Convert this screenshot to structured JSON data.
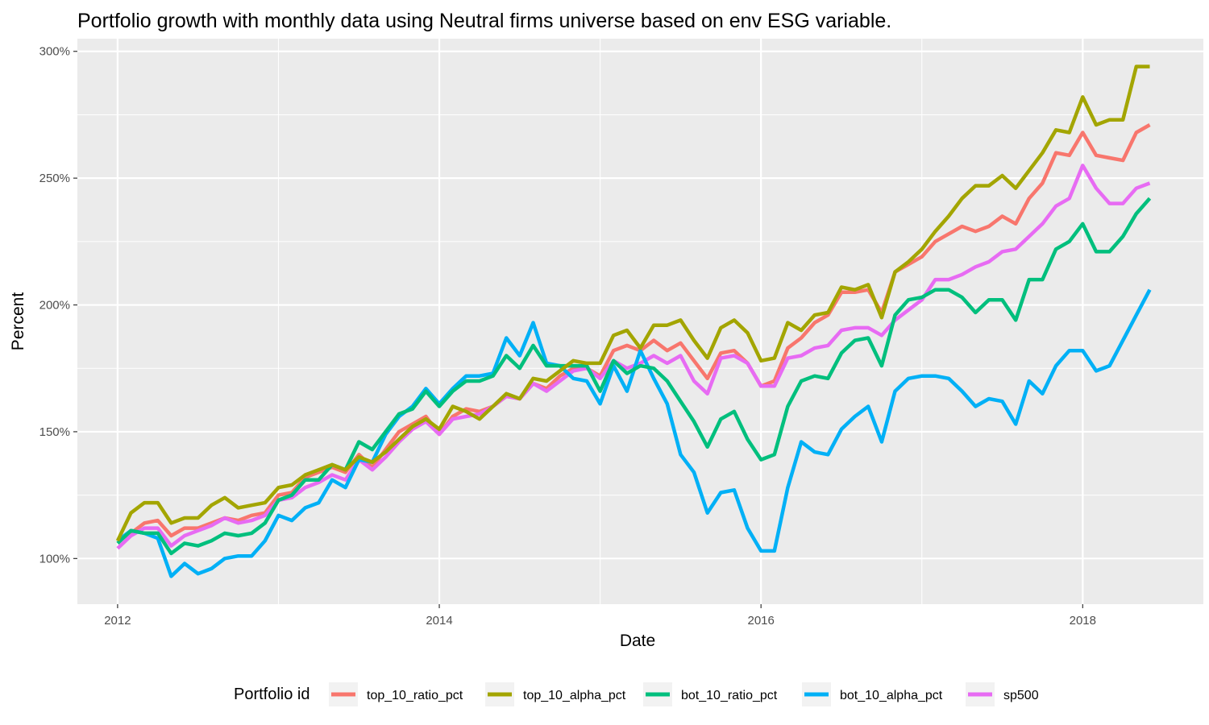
{
  "chart_data": {
    "type": "line",
    "title": "Portfolio growth with monthly data using Neutral firms universe based on env ESG variable.",
    "xlabel": "Date",
    "ylabel": "Percent",
    "x_ticks": [
      "2012",
      "2014",
      "2016",
      "2018"
    ],
    "y_ticks": [
      "100%",
      "150%",
      "200%",
      "250%",
      "300%"
    ],
    "xlim": [
      "2011-10",
      "2018-10"
    ],
    "ylim": [
      82,
      305
    ],
    "grid": true,
    "legend_title": "Portfolio id",
    "legend_position": "bottom",
    "x": [
      "2012-01",
      "2012-02",
      "2012-03",
      "2012-04",
      "2012-05",
      "2012-06",
      "2012-07",
      "2012-08",
      "2012-09",
      "2012-10",
      "2012-11",
      "2012-12",
      "2013-01",
      "2013-02",
      "2013-03",
      "2013-04",
      "2013-05",
      "2013-06",
      "2013-07",
      "2013-08",
      "2013-09",
      "2013-10",
      "2013-11",
      "2013-12",
      "2014-01",
      "2014-02",
      "2014-03",
      "2014-04",
      "2014-05",
      "2014-06",
      "2014-07",
      "2014-08",
      "2014-09",
      "2014-10",
      "2014-11",
      "2014-12",
      "2015-01",
      "2015-02",
      "2015-03",
      "2015-04",
      "2015-05",
      "2015-06",
      "2015-07",
      "2015-08",
      "2015-09",
      "2015-10",
      "2015-11",
      "2015-12",
      "2016-01",
      "2016-02",
      "2016-03",
      "2016-04",
      "2016-05",
      "2016-06",
      "2016-07",
      "2016-08",
      "2016-09",
      "2016-10",
      "2016-11",
      "2016-12",
      "2017-01",
      "2017-02",
      "2017-03",
      "2017-04",
      "2017-05",
      "2017-06",
      "2017-07",
      "2017-08",
      "2017-09",
      "2017-10",
      "2017-11",
      "2017-12",
      "2018-01",
      "2018-02",
      "2018-03",
      "2018-04",
      "2018-05",
      "2018-06"
    ],
    "series": [
      {
        "name": "top_10_ratio_pct",
        "color": "#F8766D",
        "values": [
          107,
          110,
          114,
          115,
          109,
          112,
          112,
          114,
          116,
          115,
          117,
          118,
          125,
          126,
          132,
          134,
          136,
          134,
          141,
          136,
          143,
          150,
          153,
          156,
          149,
          156,
          159,
          158,
          160,
          164,
          163,
          169,
          167,
          172,
          175,
          175,
          172,
          182,
          184,
          182,
          186,
          182,
          185,
          178,
          171,
          181,
          182,
          177,
          168,
          170,
          183,
          187,
          193,
          196,
          205,
          205,
          206,
          197,
          213,
          216,
          219,
          225,
          228,
          231,
          229,
          231,
          235,
          232,
          242,
          248,
          260,
          259,
          268,
          259,
          258,
          257,
          268,
          271
        ]
      },
      {
        "name": "top_10_alpha_pct",
        "color": "#A3A500",
        "values": [
          107,
          118,
          122,
          122,
          114,
          116,
          116,
          121,
          124,
          120,
          121,
          122,
          128,
          129,
          133,
          135,
          137,
          135,
          140,
          138,
          142,
          147,
          152,
          155,
          151,
          160,
          158,
          155,
          160,
          165,
          163,
          171,
          170,
          174,
          178,
          177,
          177,
          188,
          190,
          183,
          192,
          192,
          194,
          186,
          179,
          191,
          194,
          189,
          178,
          179,
          193,
          190,
          196,
          197,
          207,
          206,
          208,
          195,
          213,
          217,
          222,
          229,
          235,
          242,
          247,
          247,
          251,
          246,
          253,
          260,
          269,
          268,
          282,
          271,
          273,
          273,
          294,
          294
        ]
      },
      {
        "name": "bot_10_ratio_pct",
        "color": "#00BF7D",
        "values": [
          106,
          111,
          110,
          110,
          102,
          106,
          105,
          107,
          110,
          109,
          110,
          114,
          123,
          125,
          131,
          131,
          137,
          135,
          146,
          143,
          150,
          157,
          159,
          166,
          160,
          166,
          170,
          170,
          172,
          180,
          175,
          184,
          176,
          176,
          176,
          176,
          166,
          178,
          173,
          176,
          175,
          170,
          162,
          154,
          144,
          155,
          158,
          147,
          139,
          141,
          160,
          170,
          172,
          171,
          181,
          186,
          187,
          176,
          196,
          202,
          203,
          206,
          206,
          203,
          197,
          202,
          202,
          194,
          210,
          210,
          222,
          225,
          232,
          221,
          221,
          227,
          236,
          242
        ]
      },
      {
        "name": "bot_10_alpha_pct",
        "color": "#00B0F6",
        "values": [
          107,
          111,
          110,
          108,
          93,
          98,
          94,
          96,
          100,
          101,
          101,
          107,
          117,
          115,
          120,
          122,
          131,
          128,
          139,
          138,
          149,
          156,
          160,
          167,
          161,
          167,
          172,
          172,
          173,
          187,
          180,
          193,
          177,
          176,
          171,
          170,
          161,
          176,
          166,
          182,
          171,
          161,
          141,
          134,
          118,
          126,
          127,
          112,
          103,
          103,
          128,
          146,
          142,
          141,
          151,
          156,
          160,
          146,
          166,
          171,
          172,
          172,
          171,
          166,
          160,
          163,
          162,
          153,
          170,
          165,
          176,
          182,
          182,
          174,
          176,
          186,
          196,
          206
        ]
      },
      {
        "name": "sp500",
        "color": "#E76BF3",
        "values": [
          104,
          109,
          112,
          112,
          105,
          109,
          111,
          113,
          116,
          114,
          115,
          117,
          123,
          124,
          128,
          130,
          133,
          131,
          139,
          135,
          140,
          146,
          151,
          154,
          149,
          155,
          156,
          157,
          160,
          164,
          163,
          169,
          166,
          170,
          174,
          175,
          171,
          178,
          175,
          177,
          180,
          177,
          180,
          170,
          165,
          179,
          180,
          177,
          168,
          168,
          179,
          180,
          183,
          184,
          190,
          191,
          191,
          188,
          194,
          198,
          202,
          210,
          210,
          212,
          215,
          217,
          221,
          222,
          227,
          232,
          239,
          242,
          255,
          246,
          240,
          240,
          246,
          248
        ]
      }
    ]
  }
}
